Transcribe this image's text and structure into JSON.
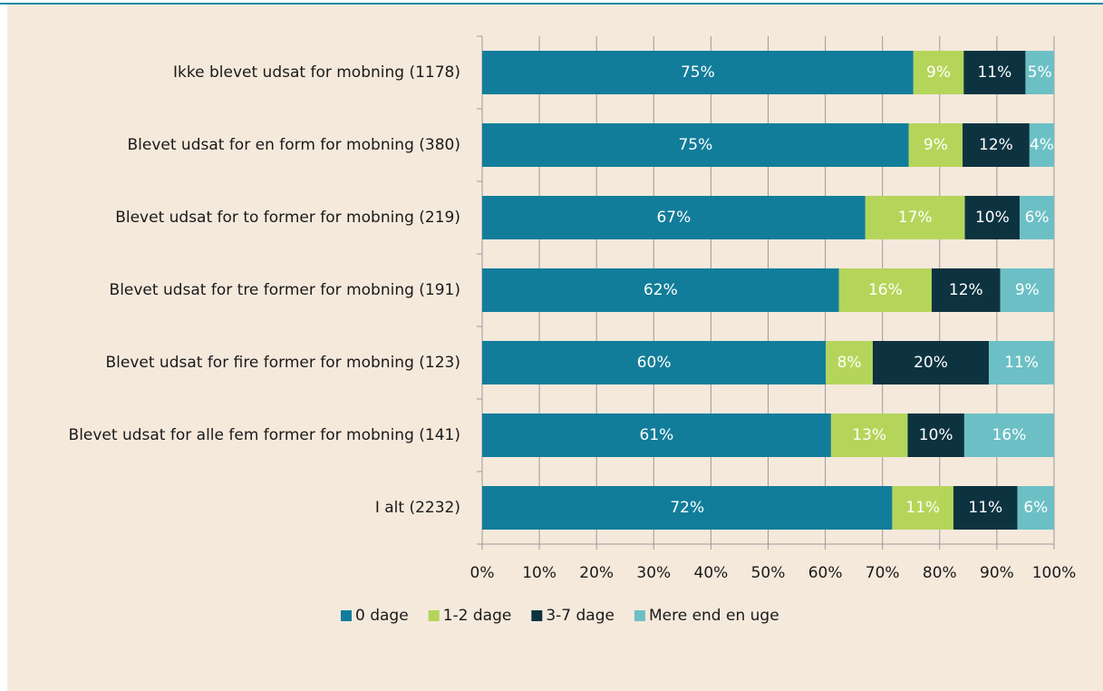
{
  "chart_data": {
    "type": "stacked_barh",
    "categories": [
      "Ikke blevet udsat for mobning (1178)",
      "Blevet udsat for en form for mobning (380)",
      "Blevet udsat for to former for mobning (219)",
      "Blevet udsat for tre former for mobning (191)",
      "Blevet udsat for fire former for mobning (123)",
      "Blevet udsat for alle fem former for mobning (141)",
      "I alt (2232)"
    ],
    "series": [
      {
        "name": "0 dage",
        "color": "#127d9a",
        "values": [
          75.4,
          74.6,
          67.0,
          62.4,
          60.1,
          61.0,
          71.7
        ],
        "value_labels": [
          "75%",
          "75%",
          "67%",
          "62%",
          "60%",
          "61%",
          "72%"
        ]
      },
      {
        "name": "1-2 dage",
        "color": "#b5d55a",
        "values": [
          8.8,
          9.4,
          17.4,
          16.2,
          8.2,
          13.4,
          10.7
        ],
        "value_labels": [
          "9%",
          "9%",
          "17%",
          "16%",
          "8%",
          "13%",
          "11%"
        ]
      },
      {
        "name": "3-7 dage",
        "color": "#0d3340",
        "values": [
          10.8,
          11.7,
          9.6,
          12.0,
          20.3,
          9.9,
          11.2
        ],
        "value_labels": [
          "11%",
          "12%",
          "10%",
          "12%",
          "20%",
          "10%",
          "11%"
        ]
      },
      {
        "name": "Mere end en uge",
        "color": "#6cc0c5",
        "values": [
          5.0,
          4.3,
          6.0,
          9.4,
          11.4,
          15.7,
          6.4
        ],
        "value_labels": [
          "5%",
          "4%",
          "6%",
          "9%",
          "11%",
          "16%",
          "6%"
        ]
      }
    ],
    "xlim": [
      0,
      100
    ],
    "xticks": [
      {
        "value": 0,
        "label": "0%"
      },
      {
        "value": 10,
        "label": "10%"
      },
      {
        "value": 20,
        "label": "20%"
      },
      {
        "value": 30,
        "label": "30%"
      },
      {
        "value": 40,
        "label": "40%"
      },
      {
        "value": 50,
        "label": "50%"
      },
      {
        "value": 60,
        "label": "60%"
      },
      {
        "value": 70,
        "label": "70%"
      },
      {
        "value": 80,
        "label": "80%"
      },
      {
        "value": 90,
        "label": "90%"
      },
      {
        "value": 100,
        "label": "100%"
      }
    ],
    "grid": true,
    "legend": "bottom"
  }
}
